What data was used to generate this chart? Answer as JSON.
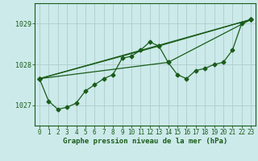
{
  "title": "Graphe pression niveau de la mer (hPa)",
  "bg_color": "#cceaea",
  "grid_color": "#b0cccc",
  "line_color": "#1a5c1a",
  "xlim": [
    -0.5,
    23.5
  ],
  "ylim": [
    1026.5,
    1029.5
  ],
  "yticks": [
    1027,
    1028,
    1029
  ],
  "xticks": [
    0,
    1,
    2,
    3,
    4,
    5,
    6,
    7,
    8,
    9,
    10,
    11,
    12,
    13,
    14,
    15,
    16,
    17,
    18,
    19,
    20,
    21,
    22,
    23
  ],
  "series": [
    [
      0,
      1027.65
    ],
    [
      1,
      1027.1
    ],
    [
      2,
      1026.9
    ],
    [
      3,
      1026.95
    ],
    [
      4,
      1027.05
    ],
    [
      5,
      1027.35
    ],
    [
      6,
      1027.5
    ],
    [
      7,
      1027.65
    ],
    [
      8,
      1027.75
    ],
    [
      9,
      1028.15
    ],
    [
      10,
      1028.2
    ],
    [
      11,
      1028.35
    ],
    [
      12,
      1028.55
    ],
    [
      13,
      1028.45
    ],
    [
      14,
      1028.05
    ],
    [
      15,
      1027.75
    ],
    [
      16,
      1027.65
    ],
    [
      17,
      1027.85
    ],
    [
      18,
      1027.9
    ],
    [
      19,
      1028.0
    ],
    [
      20,
      1028.05
    ],
    [
      21,
      1028.35
    ],
    [
      22,
      1029.0
    ],
    [
      23,
      1029.1
    ]
  ],
  "extra_lines": [
    [
      [
        0,
        1027.65
      ],
      [
        23,
        1029.1
      ]
    ],
    [
      [
        0,
        1027.65
      ],
      [
        14,
        1028.05
      ],
      [
        23,
        1029.1
      ]
    ],
    [
      [
        0,
        1027.65
      ],
      [
        13,
        1028.45
      ],
      [
        23,
        1029.1
      ]
    ]
  ],
  "marker": "D",
  "markersize": 2.5,
  "linewidth": 0.9,
  "tick_fontsize": 5.5,
  "label_fontsize": 6.5
}
